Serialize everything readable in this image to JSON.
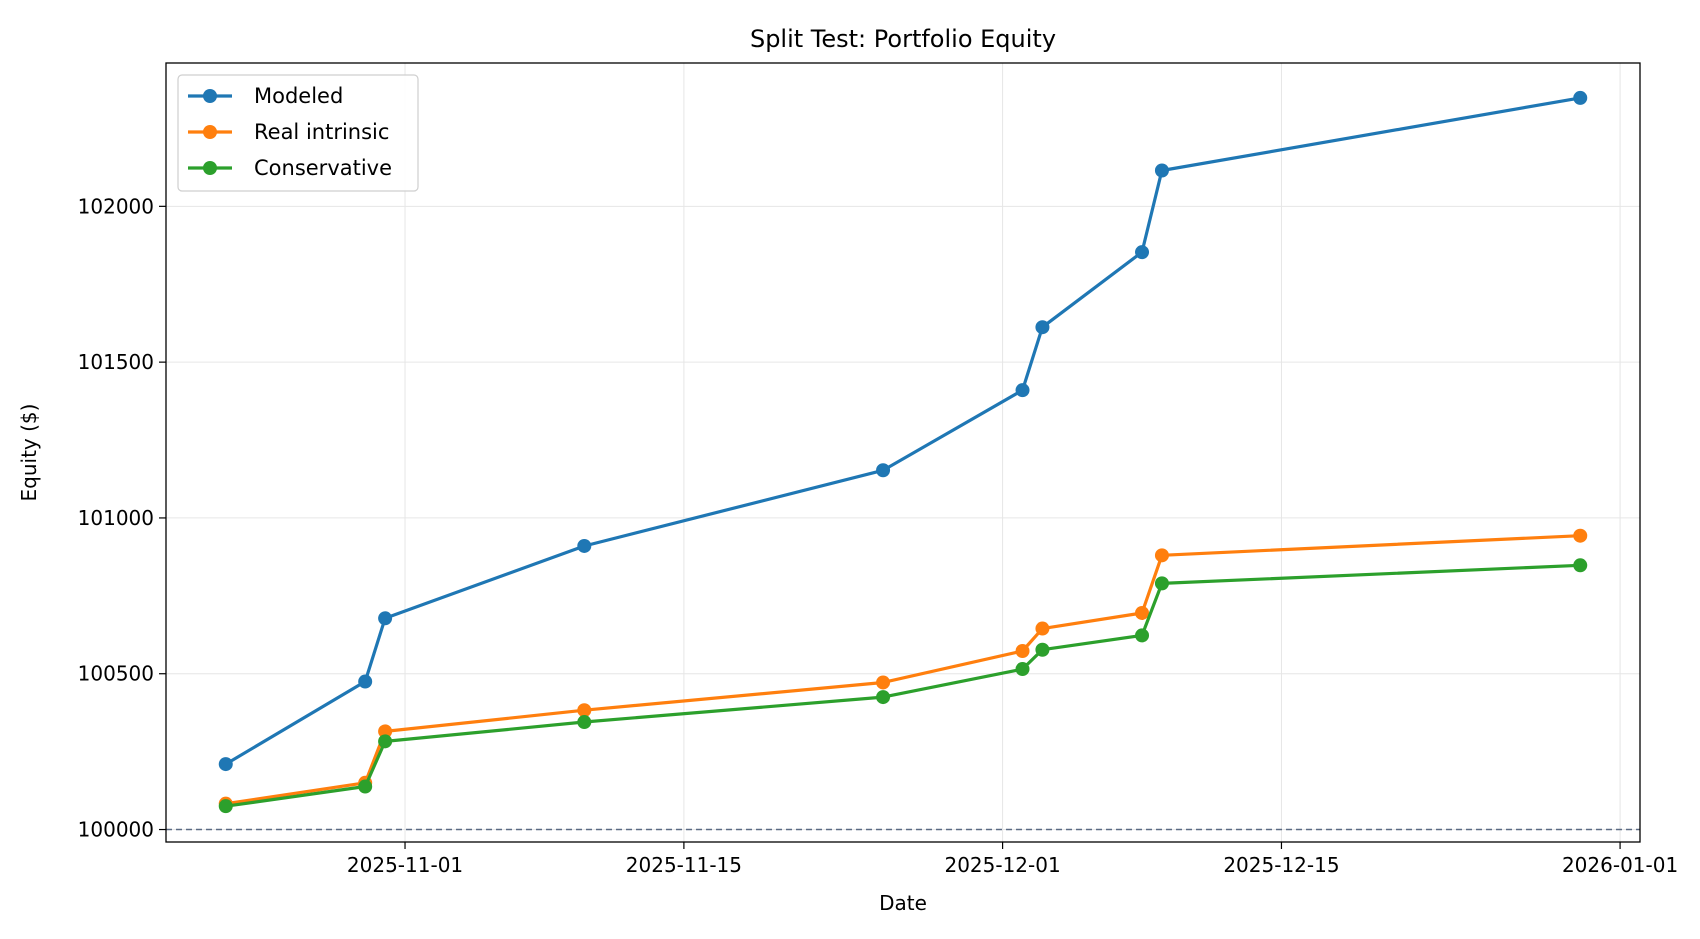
{
  "chart_data": {
    "type": "line",
    "title": "Split Test: Portfolio Equity",
    "xlabel": "Date",
    "ylabel": "Equity ($)",
    "x_type": "date",
    "xlim": [
      "2025-10-20",
      "2026-01-02"
    ],
    "ylim": [
      99960,
      102460
    ],
    "x_ticks": [
      "2025-11-01",
      "2025-11-15",
      "2025-12-01",
      "2025-12-15",
      "2026-01-01"
    ],
    "y_ticks": [
      100000,
      100500,
      101000,
      101500,
      102000
    ],
    "grid": true,
    "legend_position": "top-left",
    "reference_line": {
      "y": 100000,
      "style": "dashed",
      "color": "#5a6a84"
    },
    "x": [
      "2025-10-23",
      "2025-10-30",
      "2025-10-31",
      "2025-11-10",
      "2025-11-25",
      "2025-12-02",
      "2025-12-03",
      "2025-12-08",
      "2025-12-09",
      "2025-12-30"
    ],
    "series": [
      {
        "name": "Modeled",
        "color": "#1f77b4",
        "values": [
          100210,
          100475,
          100678,
          100910,
          101153,
          101410,
          101612,
          101853,
          102115,
          102348
        ]
      },
      {
        "name": "Real intrinsic",
        "color": "#ff7f0e",
        "values": [
          100083,
          100150,
          100315,
          100383,
          100472,
          100573,
          100645,
          100695,
          100880,
          100943
        ]
      },
      {
        "name": "Conservative",
        "color": "#2ca02c",
        "values": [
          100075,
          100138,
          100283,
          100345,
          100425,
          100515,
          100577,
          100623,
          100790,
          100848
        ]
      }
    ]
  }
}
